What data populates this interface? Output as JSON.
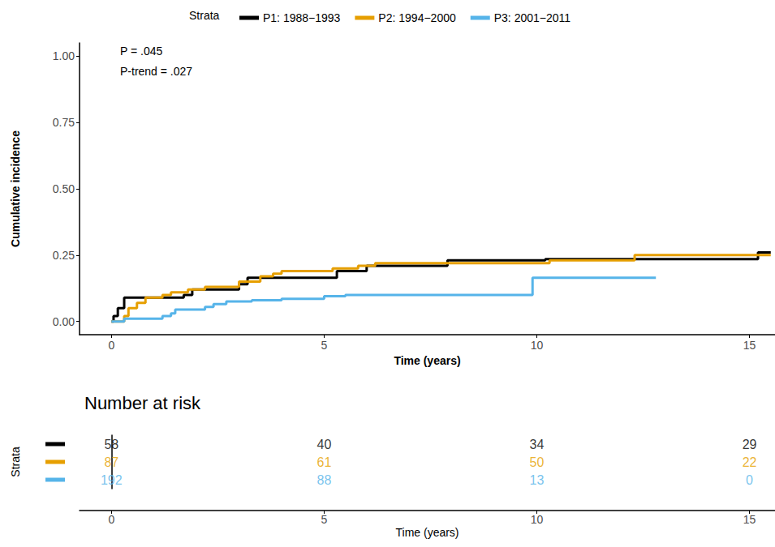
{
  "chart_data": [
    {
      "type": "step",
      "xlabel": "Time (years)",
      "ylabel": "Cumulative incidence",
      "xlim": [
        -0.75,
        15.6
      ],
      "xticks": [
        0,
        5,
        10,
        15
      ],
      "ylim": [
        -0.05,
        1.05
      ],
      "yticks": [
        {
          "value": 0,
          "label": "0.00"
        },
        {
          "value": 0.25,
          "label": "0.25"
        },
        {
          "value": 0.5,
          "label": "0.50"
        },
        {
          "value": 0.75,
          "label": "0.75"
        },
        {
          "value": 1,
          "label": "1.00"
        }
      ],
      "grid": false,
      "legend": "top",
      "legend_title": "Strata",
      "annotations": [
        "P = .045",
        "P-trend = .027"
      ],
      "series": [
        {
          "name": "P1: 1988−1993",
          "color": "#000000",
          "x": [
            0,
            0.05,
            0.15,
            0.3,
            1.7,
            1.9,
            3.0,
            3.2,
            5.3,
            6.0,
            7.9,
            10.2,
            15.2,
            15.5
          ],
          "values": [
            0,
            0.02,
            0.05,
            0.09,
            0.1,
            0.12,
            0.14,
            0.165,
            0.19,
            0.21,
            0.23,
            0.235,
            0.26,
            0.26
          ]
        },
        {
          "name": "P2: 1994−2000",
          "color": "#E69F00",
          "x": [
            0,
            0.3,
            0.4,
            0.6,
            0.8,
            1.2,
            1.4,
            1.8,
            2.2,
            3.0,
            3.5,
            3.8,
            4.0,
            5.2,
            5.8,
            6.2,
            10.3,
            12.3,
            15.5
          ],
          "values": [
            0,
            0.02,
            0.05,
            0.07,
            0.09,
            0.1,
            0.11,
            0.12,
            0.13,
            0.15,
            0.17,
            0.18,
            0.19,
            0.2,
            0.21,
            0.22,
            0.23,
            0.25,
            0.25
          ]
        },
        {
          "name": "P3: 2001−2011",
          "color": "#56B4E9",
          "x": [
            0,
            0.3,
            1.2,
            1.4,
            1.5,
            2.2,
            2.4,
            2.7,
            3.3,
            4.0,
            5.0,
            5.5,
            9.9,
            12.8
          ],
          "values": [
            0,
            0.01,
            0.02,
            0.03,
            0.045,
            0.055,
            0.065,
            0.075,
            0.08,
            0.085,
            0.095,
            0.1,
            0.165,
            0.165
          ]
        }
      ]
    },
    {
      "type": "table",
      "title": "Number at risk",
      "ylabel": "Strata",
      "xlabel": "Time (years)",
      "xlim": [
        -0.75,
        15.6
      ],
      "xticks": [
        0,
        5,
        10,
        15
      ],
      "x": [
        0,
        5,
        10,
        15
      ],
      "series": [
        {
          "name": "P1: 1988−1993",
          "color": "#000000",
          "values": [
            58,
            40,
            34,
            29
          ]
        },
        {
          "name": "P2: 1994−2000",
          "color": "#E69F00",
          "values": [
            87,
            61,
            50,
            22
          ]
        },
        {
          "name": "P3: 2001−2011",
          "color": "#56B4E9",
          "values": [
            192,
            88,
            13,
            0
          ]
        }
      ]
    }
  ]
}
